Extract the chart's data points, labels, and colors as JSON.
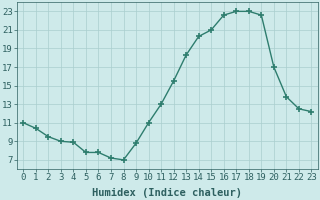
{
  "x": [
    0,
    1,
    2,
    3,
    4,
    5,
    6,
    7,
    8,
    9,
    10,
    11,
    12,
    13,
    14,
    15,
    16,
    17,
    18,
    19,
    20,
    21,
    22,
    23
  ],
  "y": [
    11.0,
    10.4,
    9.5,
    9.0,
    8.9,
    7.8,
    7.8,
    7.2,
    7.0,
    8.8,
    11.0,
    13.0,
    15.5,
    18.3,
    20.3,
    21.0,
    22.6,
    23.0,
    23.0,
    22.6,
    17.0,
    13.8,
    12.5,
    12.2
  ],
  "line_color": "#2e7d6e",
  "marker_color": "#2e7d6e",
  "bg_color": "#ceeaea",
  "grid_color": "#aacece",
  "tick_label_color": "#2e6060",
  "xlabel": "Humidex (Indice chaleur)",
  "xlabel_color": "#2e6060",
  "xlabel_fontsize": 7.5,
  "tick_fontsize": 6.5,
  "ylim": [
    6,
    24
  ],
  "xlim": [
    -0.5,
    23.5
  ],
  "yticks": [
    7,
    9,
    11,
    13,
    15,
    17,
    19,
    21,
    23
  ],
  "xticks": [
    0,
    1,
    2,
    3,
    4,
    5,
    6,
    7,
    8,
    9,
    10,
    11,
    12,
    13,
    14,
    15,
    16,
    17,
    18,
    19,
    20,
    21,
    22,
    23
  ],
  "xtick_labels": [
    "0",
    "1",
    "2",
    "3",
    "4",
    "5",
    "6",
    "7",
    "8",
    "9",
    "10",
    "11",
    "12",
    "13",
    "14",
    "15",
    "16",
    "17",
    "18",
    "19",
    "20",
    "21",
    "22",
    "23"
  ],
  "line_width": 1.0,
  "marker_size": 4
}
